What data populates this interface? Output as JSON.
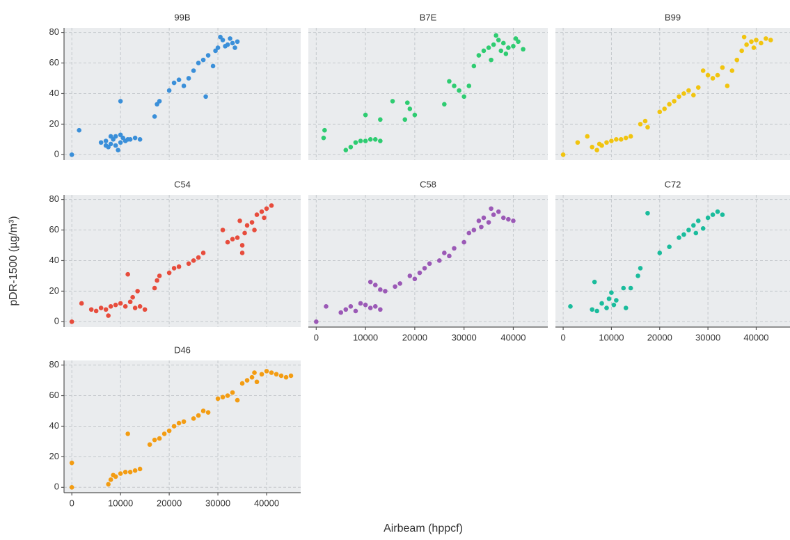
{
  "y_label": "pDR-1500 (µg/m³)",
  "x_label": "Airbeam (hppcf)",
  "chart_data": [
    {
      "type": "scatter",
      "title": "99B",
      "color": "#3a8fd9",
      "xtick_labels": false,
      "ytick_labels": true,
      "x": [
        0,
        1500,
        6000,
        7000,
        7500,
        8000,
        8500,
        9000,
        9500,
        10000,
        10500,
        11000,
        12000,
        13000,
        14000,
        8000,
        9000,
        10000,
        11500,
        7000,
        10000,
        17000,
        17500,
        18000,
        20000,
        21000,
        22000,
        23000,
        24000,
        25000,
        26000,
        27000,
        27500,
        28000,
        29000,
        29500,
        30000,
        30500,
        31000,
        31500,
        32000,
        32500,
        33000,
        33500,
        34000
      ],
      "y": [
        0,
        16,
        8,
        9,
        5,
        7,
        10,
        12,
        3,
        8,
        11,
        9,
        10,
        11,
        10,
        12,
        6,
        13,
        10,
        6,
        35,
        25,
        33,
        35,
        42,
        47,
        49,
        45,
        50,
        55,
        60,
        62,
        38,
        65,
        58,
        68,
        70,
        77,
        75,
        71,
        72,
        76,
        73,
        70,
        74
      ],
      "xlim": [
        -1600,
        47000
      ],
      "ylim": [
        -3.5,
        83
      ],
      "xticks": [
        0,
        10000,
        20000,
        30000,
        40000
      ],
      "yticks": [
        0,
        20,
        40,
        60,
        80
      ],
      "grid": true
    },
    {
      "type": "scatter",
      "title": "B7E",
      "color": "#2ecc71",
      "xtick_labels": false,
      "ytick_labels": false,
      "x": [
        1500,
        1700,
        6000,
        7000,
        8000,
        9000,
        10000,
        11000,
        12000,
        13000,
        10000,
        13000,
        15500,
        18000,
        18500,
        19000,
        20000,
        26000,
        27000,
        28000,
        29000,
        30000,
        31000,
        32000,
        33000,
        34000,
        35000,
        35500,
        36000,
        36500,
        37000,
        37500,
        38000,
        38500,
        39000,
        40000,
        40500,
        41000,
        42000
      ],
      "y": [
        11,
        16,
        3,
        5,
        8,
        9,
        9,
        10,
        10,
        9,
        26,
        23,
        35,
        23,
        34,
        30,
        26,
        33,
        48,
        45,
        42,
        38,
        45,
        58,
        65,
        68,
        70,
        62,
        72,
        78,
        75,
        68,
        73,
        66,
        70,
        71,
        76,
        74,
        69
      ],
      "xlim": [
        -1600,
        47000
      ],
      "ylim": [
        -3.5,
        83
      ],
      "xticks": [
        0,
        10000,
        20000,
        30000,
        40000
      ],
      "yticks": [
        0,
        20,
        40,
        60,
        80
      ],
      "grid": true
    },
    {
      "type": "scatter",
      "title": "B99",
      "color": "#f1c40f",
      "xtick_labels": false,
      "ytick_labels": false,
      "x": [
        0,
        3000,
        5000,
        6000,
        7000,
        7500,
        8000,
        9000,
        10000,
        11000,
        12000,
        13000,
        14000,
        16000,
        17000,
        17500,
        20000,
        21000,
        22000,
        23000,
        24000,
        25000,
        26000,
        27000,
        28000,
        29000,
        30000,
        31000,
        32000,
        33000,
        34000,
        35000,
        36000,
        37000,
        37500,
        38000,
        39000,
        39500,
        40000,
        41000,
        42000,
        43000
      ],
      "y": [
        0,
        8,
        12,
        5,
        3,
        7,
        6,
        8,
        9,
        10,
        10,
        11,
        12,
        20,
        22,
        18,
        28,
        30,
        33,
        35,
        38,
        40,
        42,
        39,
        44,
        55,
        52,
        50,
        52,
        57,
        45,
        55,
        62,
        68,
        77,
        72,
        74,
        70,
        75,
        73,
        76,
        75
      ],
      "xlim": [
        -1600,
        47000
      ],
      "ylim": [
        -3.5,
        83
      ],
      "xticks": [
        0,
        10000,
        20000,
        30000,
        40000
      ],
      "yticks": [
        0,
        20,
        40,
        60,
        80
      ],
      "grid": true
    },
    {
      "type": "scatter",
      "title": "C54",
      "color": "#e74c3c",
      "xtick_labels": false,
      "ytick_labels": true,
      "x": [
        0,
        2000,
        4000,
        5000,
        6000,
        7000,
        7500,
        8000,
        9000,
        10000,
        11000,
        12000,
        13000,
        11500,
        13500,
        14000,
        15000,
        12500,
        17000,
        17500,
        18000,
        20000,
        21000,
        22000,
        24000,
        25000,
        26000,
        27000,
        31000,
        32000,
        33000,
        34000,
        34500,
        35000,
        35000,
        35500,
        36000,
        37000,
        37500,
        38000,
        39000,
        39500,
        40000,
        41000
      ],
      "y": [
        0,
        12,
        8,
        7,
        9,
        8,
        4,
        10,
        11,
        12,
        10,
        13,
        9,
        31,
        20,
        10,
        8,
        16,
        22,
        27,
        30,
        32,
        35,
        36,
        38,
        40,
        42,
        45,
        60,
        52,
        54,
        55,
        66,
        50,
        45,
        58,
        63,
        65,
        60,
        70,
        72,
        68,
        74,
        76
      ],
      "xlim": [
        -1600,
        47000
      ],
      "ylim": [
        -3.5,
        83
      ],
      "xticks": [
        0,
        10000,
        20000,
        30000,
        40000
      ],
      "yticks": [
        0,
        20,
        40,
        60,
        80
      ],
      "grid": true
    },
    {
      "type": "scatter",
      "title": "C58",
      "color": "#9b59b6",
      "xtick_labels": true,
      "ytick_labels": false,
      "x": [
        0,
        2000,
        5000,
        6000,
        7000,
        8000,
        9000,
        10000,
        11000,
        12000,
        13000,
        11000,
        12000,
        13000,
        14000,
        16000,
        17000,
        19000,
        20000,
        21000,
        22000,
        23000,
        25000,
        26000,
        27000,
        28000,
        30000,
        31000,
        32000,
        33000,
        33500,
        34000,
        35000,
        35500,
        36000,
        37000,
        38000,
        39000,
        40000
      ],
      "y": [
        0,
        10,
        6,
        8,
        10,
        7,
        12,
        11,
        9,
        10,
        8,
        26,
        24,
        21,
        20,
        23,
        25,
        30,
        28,
        32,
        35,
        38,
        40,
        45,
        43,
        48,
        52,
        58,
        60,
        66,
        62,
        68,
        65,
        74,
        70,
        72,
        68,
        67,
        66
      ],
      "xlim": [
        -1600,
        47000
      ],
      "ylim": [
        -3.5,
        83
      ],
      "xticks": [
        0,
        10000,
        20000,
        30000,
        40000
      ],
      "yticks": [
        0,
        20,
        40,
        60,
        80
      ],
      "grid": true
    },
    {
      "type": "scatter",
      "title": "C72",
      "color": "#1abc9c",
      "xtick_labels": true,
      "ytick_labels": false,
      "x": [
        1500,
        6000,
        6500,
        7000,
        8000,
        9000,
        9500,
        10000,
        10500,
        11000,
        12500,
        13000,
        14000,
        15500,
        16000,
        17500,
        20000,
        22000,
        24000,
        25000,
        26000,
        27000,
        27500,
        28000,
        29000,
        30000,
        31000,
        32000,
        33000
      ],
      "y": [
        10,
        8,
        26,
        7,
        12,
        9,
        15,
        19,
        11,
        14,
        22,
        9,
        22,
        30,
        35,
        71,
        45,
        49,
        55,
        57,
        60,
        63,
        58,
        66,
        61,
        68,
        70,
        72,
        70
      ],
      "xlim": [
        -1600,
        47000
      ],
      "ylim": [
        -3.5,
        83
      ],
      "xticks": [
        0,
        10000,
        20000,
        30000,
        40000
      ],
      "yticks": [
        0,
        20,
        40,
        60,
        80
      ],
      "grid": true
    },
    {
      "type": "scatter",
      "title": "D46",
      "color": "#f39c12",
      "xtick_labels": true,
      "ytick_labels": true,
      "x": [
        0,
        0,
        7500,
        8000,
        8500,
        9000,
        10000,
        11000,
        12000,
        13000,
        14000,
        11500,
        16000,
        17000,
        18000,
        19000,
        20000,
        21000,
        22000,
        23000,
        25000,
        26000,
        27000,
        28000,
        30000,
        31000,
        32000,
        33000,
        34000,
        35000,
        36000,
        37000,
        37500,
        38000,
        39000,
        40000,
        41000,
        42000,
        43000,
        44000,
        45000
      ],
      "y": [
        0,
        16,
        2,
        5,
        8,
        7,
        9,
        10,
        10,
        11,
        12,
        35,
        28,
        31,
        32,
        35,
        37,
        40,
        42,
        43,
        45,
        47,
        50,
        49,
        58,
        59,
        60,
        62,
        57,
        68,
        70,
        72,
        75,
        69,
        74,
        76,
        75,
        74,
        73,
        72,
        73
      ],
      "xlim": [
        -1600,
        47000
      ],
      "ylim": [
        -3.5,
        83
      ],
      "xticks": [
        0,
        10000,
        20000,
        30000,
        40000
      ],
      "yticks": [
        0,
        20,
        40,
        60,
        80
      ],
      "grid": true
    }
  ]
}
